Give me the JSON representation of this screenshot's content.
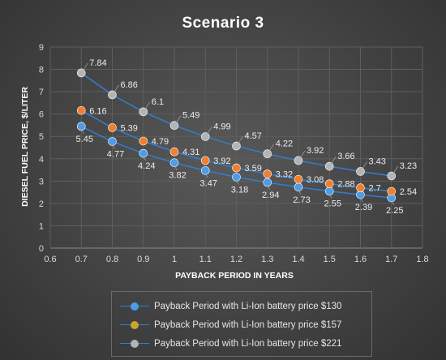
{
  "chart_data": {
    "type": "line",
    "title": "Scenario 3",
    "xlabel": "PAYBACK PERIOD IN YEARS",
    "ylabel": "DIESEL FUEL PRICE, $/LITER",
    "xlim": [
      0.6,
      1.8
    ],
    "ylim": [
      0,
      9
    ],
    "x_ticks": [
      "0.6",
      "0.7",
      "0.8",
      "0.9",
      "1",
      "1.1",
      "1.2",
      "1.3",
      "1.4",
      "1.5",
      "1.6",
      "1.7",
      "1.8"
    ],
    "y_ticks": [
      "0",
      "1",
      "2",
      "3",
      "4",
      "5",
      "6",
      "7",
      "8",
      "9"
    ],
    "grid": true,
    "legend_position": "bottom",
    "x": [
      0.7,
      0.8,
      0.9,
      1.0,
      1.1,
      1.2,
      1.3,
      1.4,
      1.5,
      1.6,
      1.7
    ],
    "series": [
      {
        "name": "Payback Period with Li-Ion battery price $130",
        "color": "#4f9be4",
        "values": [
          5.45,
          4.77,
          4.24,
          3.82,
          3.47,
          3.18,
          2.94,
          2.73,
          2.55,
          2.39,
          2.25
        ],
        "labels": [
          "5.45",
          "4.77",
          "4.24",
          "3.82",
          "3.47",
          "3.18",
          "2.94",
          "2.73",
          "2.55",
          "2.39",
          "2.25"
        ]
      },
      {
        "name": "Payback Period with Li-Ion battery price $157",
        "color": "#f07f2f",
        "values": [
          6.16,
          5.39,
          4.79,
          4.31,
          3.92,
          3.59,
          3.32,
          3.08,
          2.88,
          2.7,
          2.54
        ],
        "labels": [
          "6.16",
          "5.39",
          "4.79",
          "4.31",
          "3.92",
          "3.59",
          "3.32",
          "3.08",
          "2.88",
          "2.7",
          "2.54"
        ]
      },
      {
        "name": "Payback Period with Li-Ion battery price $221",
        "color": "#b4b4b4",
        "values": [
          7.84,
          6.86,
          6.1,
          5.49,
          4.99,
          4.57,
          4.22,
          3.92,
          3.66,
          3.43,
          3.23
        ],
        "labels": [
          "7.84",
          "6.86",
          "6.1",
          "5.49",
          "4.99",
          "4.57",
          "4.22",
          "3.92",
          "3.66",
          "3.43",
          "3.23"
        ]
      }
    ],
    "legend_markers": [
      "#4f9be4",
      "#c8a82a",
      "#b4b4b4"
    ],
    "line_color": "#2f7fd0"
  }
}
